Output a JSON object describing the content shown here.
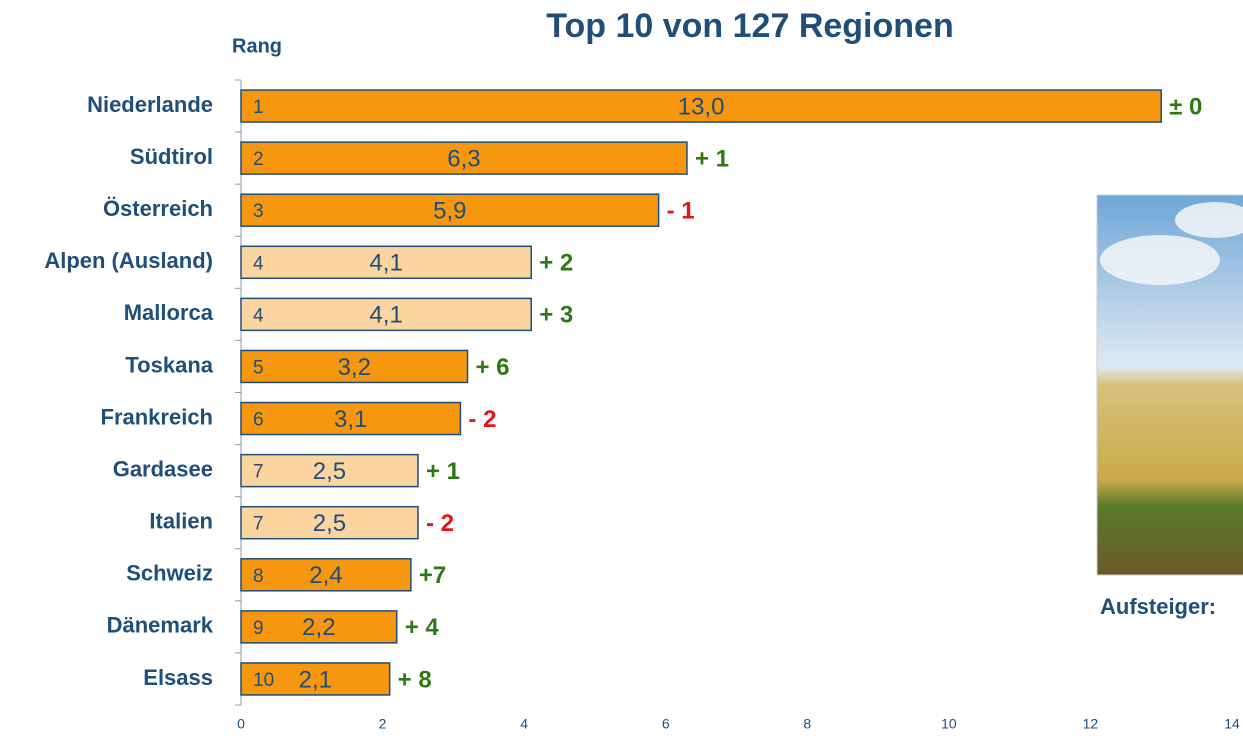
{
  "chart_data": {
    "type": "bar",
    "orientation": "horizontal",
    "title": "Top 10 von 127 Regionen",
    "rank_label": "Rang",
    "caption": "Aufsteiger:",
    "categories": [
      "Niederlande",
      "Südtirol",
      "Österreich",
      "Alpen (Ausland)",
      "Mallorca",
      "Toskana",
      "Frankreich",
      "Gardasee",
      "Italien",
      "Schweiz",
      "Dänemark",
      "Elsass"
    ],
    "values": [
      13.0,
      6.3,
      5.9,
      4.1,
      4.1,
      3.2,
      3.1,
      2.5,
      2.5,
      2.4,
      2.2,
      2.1
    ],
    "value_labels": [
      "13,0",
      "6,3",
      "5,9",
      "4,1",
      "4,1",
      "3,2",
      "3,1",
      "2,5",
      "2,5",
      "2,4",
      "2,2",
      "2,1"
    ],
    "colors": [
      "#f7960f",
      "#f7960f",
      "#f7960f",
      "#fcd4a0",
      "#fcd4a0",
      "#f7960f",
      "#f7960f",
      "#fcd4a0",
      "#fcd4a0",
      "#f7960f",
      "#f7960f",
      "#f7960f"
    ],
    "ranks": [
      1,
      2,
      3,
      4,
      4,
      5,
      6,
      7,
      7,
      8,
      9,
      10
    ],
    "changes": [
      "± 0",
      "+ 1",
      "- 1",
      "+ 2",
      "+ 3",
      "+ 6",
      "- 2",
      "+ 1",
      "- 2",
      "+7",
      "+ 4",
      "+ 8"
    ],
    "change_colors": [
      "#2e7a12",
      "#2e7a12",
      "#e8141c",
      "#2e7a12",
      "#2e7a12",
      "#2e7a12",
      "#e8141c",
      "#2e7a12",
      "#e8141c",
      "#2e7a12",
      "#2e7a12",
      "#2e7a12"
    ],
    "xlim": [
      0,
      14
    ],
    "xticks": [
      0,
      2,
      4,
      6,
      8,
      10,
      12,
      14
    ],
    "grid": false
  }
}
